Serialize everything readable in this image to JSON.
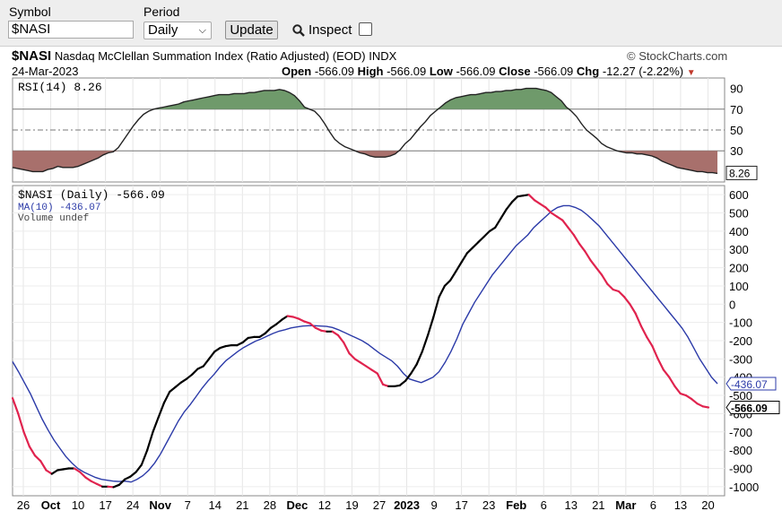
{
  "toolbar": {
    "symbol_label": "Symbol",
    "symbol_value": "$NASI",
    "period_label": "Period",
    "period_value": "Daily",
    "update_label": "Update",
    "inspect_label": "Inspect"
  },
  "header": {
    "symbol": "$NASI",
    "name": "Nasdaq McClellan Summation Index (Ratio Adjusted) (EOD)",
    "exchange": "INDX",
    "brand": "StockCharts.com",
    "date": "24-Mar-2023",
    "open_label": "Open",
    "open": "-566.09",
    "high_label": "High",
    "high": "-566.09",
    "low_label": "Low",
    "low": "-566.09",
    "close_label": "Close",
    "close": "-566.09",
    "chg_label": "Chg",
    "chg": "-12.27 (-2.22%)"
  },
  "chart_data": {
    "type": "line",
    "x_tick_labels": [
      "26",
      "Oct",
      "10",
      "17",
      "24",
      "Nov",
      "7",
      "14",
      "21",
      "28",
      "Dec",
      "12",
      "19",
      "27",
      "2023",
      "9",
      "17",
      "23",
      "Feb",
      "6",
      "13",
      "21",
      "Mar",
      "6",
      "13",
      "20"
    ],
    "rsi_panel": {
      "legend": "RSI(14) 8.26",
      "ylim": [
        0,
        100
      ],
      "y_ticks": [
        90,
        70,
        50,
        30
      ],
      "reference_lines": [
        70,
        50,
        30
      ],
      "last_value_label": "8.26",
      "series": [
        {
          "name": "RSI(14)",
          "values": [
            14,
            13,
            12,
            11,
            10,
            10,
            10,
            12,
            13,
            15,
            14,
            14,
            14,
            15,
            17,
            19,
            21,
            23,
            26,
            28,
            29,
            33,
            40,
            47,
            54,
            60,
            65,
            68,
            70,
            71,
            72,
            73,
            74,
            75,
            77,
            78,
            79,
            80,
            81,
            82,
            83,
            84,
            84,
            84,
            85,
            85,
            85,
            86,
            86,
            87,
            88,
            88,
            88,
            89,
            88,
            86,
            83,
            78,
            72,
            70,
            68,
            63,
            56,
            48,
            41,
            37,
            34,
            32,
            30,
            28,
            27,
            25,
            24,
            24,
            24,
            25,
            27,
            31,
            37,
            41,
            47,
            53,
            58,
            64,
            68,
            72,
            76,
            79,
            81,
            82,
            83,
            84,
            84,
            85,
            86,
            86,
            87,
            87,
            88,
            88,
            89,
            89,
            90,
            90,
            90,
            89,
            88,
            86,
            82,
            78,
            72,
            68,
            63,
            56,
            50,
            46,
            42,
            37,
            34,
            32,
            30,
            29,
            28,
            28,
            27,
            27,
            26,
            25,
            23,
            20,
            18,
            16,
            14,
            13,
            12,
            11,
            10,
            10,
            9,
            9,
            8.26
          ]
        }
      ]
    },
    "price_panel": {
      "legend_price": "$NASI (Daily) -566.09",
      "legend_ma": "MA(10) -436.07",
      "legend_volume": "Volume undef",
      "ylim": [
        -1050,
        650
      ],
      "y_ticks": [
        600,
        500,
        400,
        300,
        200,
        100,
        0,
        -100,
        -200,
        -300,
        -400,
        -500,
        -600,
        -700,
        -800,
        -900,
        -1000
      ],
      "last_price_label": "-566.09",
      "last_ma_label": "-436.07",
      "series": [
        {
          "name": "$NASI",
          "up_color": "#000000",
          "down_color": "#e0234e",
          "values": [
            -515,
            -600,
            -700,
            -780,
            -830,
            -860,
            -910,
            -930,
            -910,
            -905,
            -900,
            -900,
            -920,
            -950,
            -970,
            -985,
            -1000,
            -1000,
            -1003,
            -990,
            -960,
            -945,
            -920,
            -880,
            -800,
            -700,
            -620,
            -540,
            -480,
            -455,
            -430,
            -410,
            -385,
            -355,
            -340,
            -300,
            -260,
            -240,
            -230,
            -225,
            -225,
            -210,
            -185,
            -180,
            -180,
            -160,
            -130,
            -110,
            -85,
            -65,
            -70,
            -80,
            -95,
            -105,
            -130,
            -145,
            -150,
            -150,
            -170,
            -210,
            -270,
            -300,
            -320,
            -340,
            -360,
            -380,
            -440,
            -450,
            -450,
            -445,
            -420,
            -380,
            -330,
            -260,
            -170,
            -70,
            40,
            100,
            130,
            180,
            230,
            280,
            310,
            340,
            370,
            400,
            420,
            470,
            520,
            560,
            590,
            595,
            600,
            570,
            550,
            530,
            500,
            480,
            460,
            420,
            380,
            330,
            290,
            240,
            200,
            160,
            110,
            80,
            70,
            40,
            0,
            -50,
            -120,
            -180,
            -230,
            -300,
            -360,
            -400,
            -450,
            -490,
            -500,
            -520,
            -545,
            -560,
            -566.09
          ]
        },
        {
          "name": "MA(10)",
          "color": "#2b3aa8",
          "values": [
            -315,
            -370,
            -430,
            -490,
            -560,
            -630,
            -690,
            -745,
            -790,
            -835,
            -870,
            -900,
            -920,
            -935,
            -950,
            -960,
            -965,
            -970,
            -972,
            -970,
            -975,
            -960,
            -940,
            -910,
            -870,
            -820,
            -760,
            -700,
            -640,
            -590,
            -550,
            -505,
            -460,
            -420,
            -385,
            -345,
            -310,
            -285,
            -260,
            -238,
            -220,
            -203,
            -190,
            -175,
            -160,
            -148,
            -140,
            -130,
            -125,
            -120,
            -118,
            -118,
            -120,
            -122,
            -128,
            -140,
            -155,
            -170,
            -185,
            -200,
            -220,
            -245,
            -270,
            -290,
            -310,
            -340,
            -380,
            -410,
            -420,
            -430,
            -415,
            -400,
            -370,
            -320,
            -260,
            -190,
            -110,
            -50,
            10,
            60,
            110,
            160,
            200,
            240,
            280,
            320,
            350,
            380,
            420,
            450,
            480,
            510,
            530,
            540,
            540,
            530,
            515,
            490,
            460,
            430,
            390,
            350,
            310,
            270,
            230,
            190,
            150,
            110,
            70,
            30,
            -10,
            -50,
            -90,
            -130,
            -180,
            -240,
            -300,
            -350,
            -400,
            -436.07
          ]
        }
      ]
    }
  }
}
